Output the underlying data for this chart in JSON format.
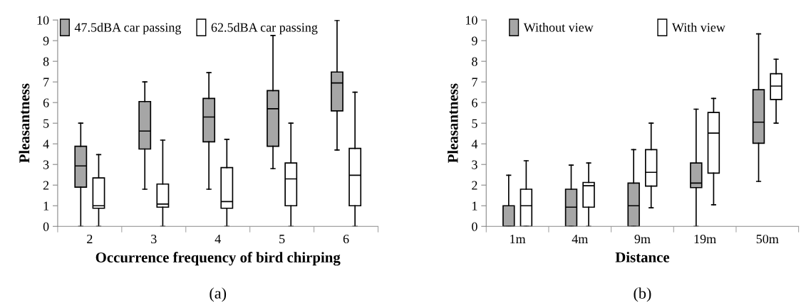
{
  "chart_data": [
    {
      "type": "box",
      "xlabel": "Occurrence frequency of bird chirping",
      "ylabel": "Pleasantness",
      "categories": [
        "2",
        "3",
        "4",
        "5",
        "6"
      ],
      "ylim": [
        0,
        10
      ],
      "yticks": [
        0,
        1,
        2,
        3,
        4,
        5,
        6,
        7,
        8,
        9,
        10
      ],
      "grid": false,
      "legend": "top",
      "annotations": [
        "(a)"
      ],
      "series": [
        {
          "name": "47.5dBA car passing",
          "color": "#a6a6a6",
          "boxes": [
            {
              "low": 0,
              "q1": 1.9,
              "median": 2.93,
              "q3": 3.88,
              "high": 5.0
            },
            {
              "low": 1.8,
              "q1": 3.75,
              "median": 4.62,
              "q3": 6.05,
              "high": 7.0
            },
            {
              "low": 1.8,
              "q1": 4.1,
              "median": 5.3,
              "q3": 6.2,
              "high": 7.45
            },
            {
              "low": 2.8,
              "q1": 3.88,
              "median": 5.7,
              "q3": 6.58,
              "high": 9.25
            },
            {
              "low": 3.7,
              "q1": 5.6,
              "median": 6.95,
              "q3": 7.48,
              "high": 9.98
            }
          ]
        },
        {
          "name": "62.5dBA car passing",
          "color": "#ffffff",
          "boxes": [
            {
              "low": 0,
              "q1": 0.88,
              "median": 1.0,
              "q3": 2.35,
              "high": 3.48
            },
            {
              "low": 0,
              "q1": 0.93,
              "median": 1.08,
              "q3": 2.05,
              "high": 4.18
            },
            {
              "low": 0,
              "q1": 0.88,
              "median": 1.2,
              "q3": 2.85,
              "high": 4.22
            },
            {
              "low": 0,
              "q1": 1.0,
              "median": 2.3,
              "q3": 3.07,
              "high": 5.0
            },
            {
              "low": 0,
              "q1": 1.0,
              "median": 2.48,
              "q3": 3.78,
              "high": 6.5
            }
          ]
        }
      ]
    },
    {
      "type": "box",
      "xlabel": "Distance",
      "ylabel": "Pleasantness",
      "categories": [
        "1m",
        "4m",
        "9m",
        "19m",
        "50m"
      ],
      "ylim": [
        0,
        10
      ],
      "yticks": [
        0,
        1,
        2,
        3,
        4,
        5,
        6,
        7,
        8,
        9,
        10
      ],
      "grid": false,
      "legend": "top",
      "annotations": [
        "(b)"
      ],
      "series": [
        {
          "name": "Without view",
          "color": "#a6a6a6",
          "boxes": [
            {
              "low": 0,
              "q1": 0,
              "median": 0,
              "q3": 1.0,
              "high": 2.48
            },
            {
              "low": 0,
              "q1": 0,
              "median": 0.93,
              "q3": 1.8,
              "high": 2.97
            },
            {
              "low": 0,
              "q1": 0,
              "median": 1.0,
              "q3": 2.1,
              "high": 3.72
            },
            {
              "low": 0,
              "q1": 1.88,
              "median": 2.1,
              "q3": 3.07,
              "high": 5.68
            },
            {
              "low": 2.18,
              "q1": 4.03,
              "median": 5.05,
              "q3": 6.62,
              "high": 9.33
            }
          ]
        },
        {
          "name": "With view",
          "color": "#ffffff",
          "boxes": [
            {
              "low": 0,
              "q1": 0,
              "median": 1.0,
              "q3": 1.8,
              "high": 3.18
            },
            {
              "low": 0,
              "q1": 0.93,
              "median": 1.97,
              "q3": 2.13,
              "high": 3.07
            },
            {
              "low": 0.9,
              "q1": 1.95,
              "median": 2.62,
              "q3": 3.72,
              "high": 5.0
            },
            {
              "low": 1.05,
              "q1": 2.58,
              "median": 4.52,
              "q3": 5.52,
              "high": 6.2
            },
            {
              "low": 5.0,
              "q1": 6.15,
              "median": 6.8,
              "q3": 7.4,
              "high": 8.1
            }
          ]
        }
      ]
    }
  ]
}
